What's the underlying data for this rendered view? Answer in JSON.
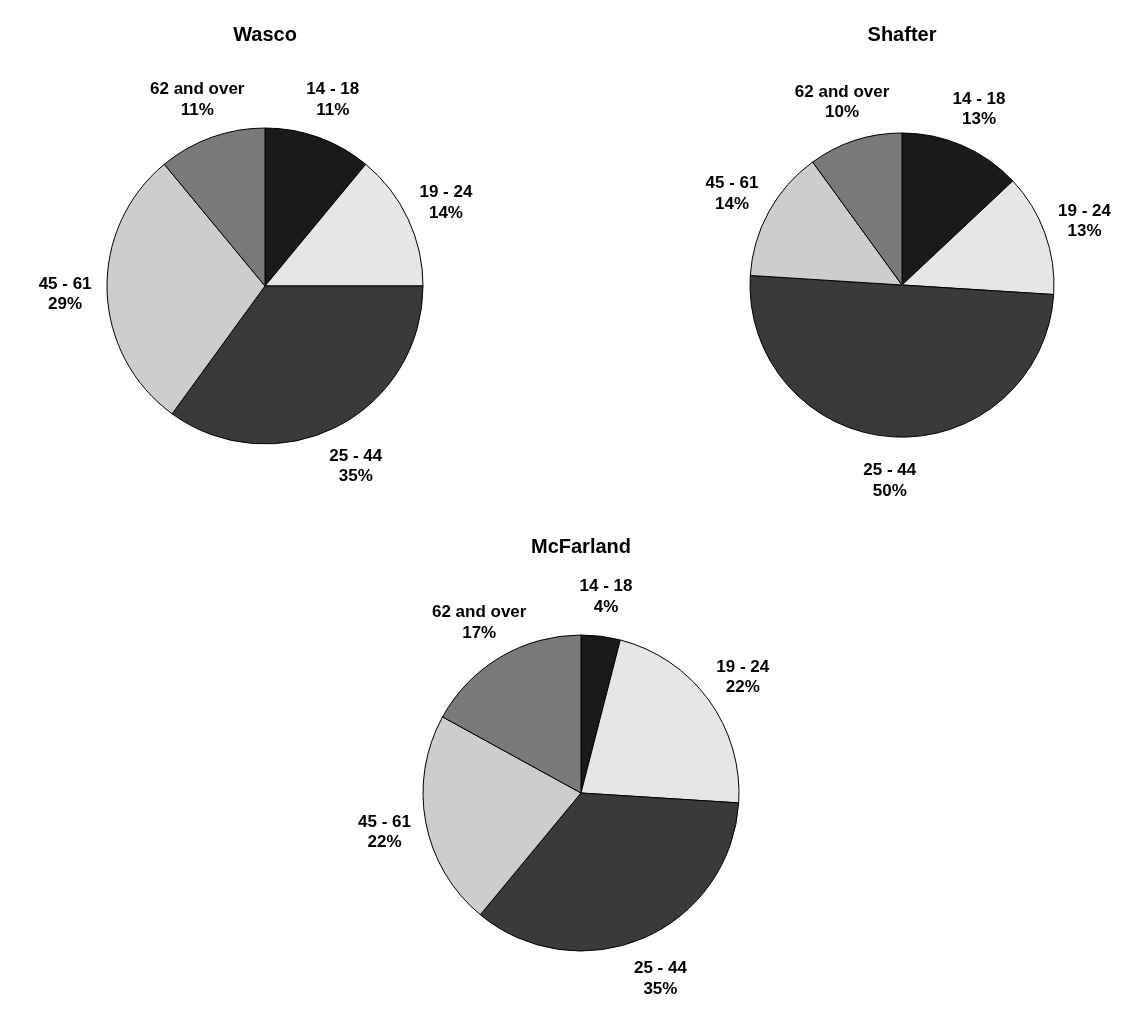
{
  "chart_data": [
    {
      "type": "pie",
      "title": "Wasco",
      "categories": [
        "14 - 18",
        "19 - 24",
        "25 - 44",
        "45 - 61",
        "62 and over"
      ],
      "values": [
        11,
        14,
        35,
        29,
        11
      ],
      "value_labels": [
        "11%",
        "14%",
        "35%",
        "29%",
        "11%"
      ],
      "colors": [
        "#1a1a1a",
        "#e6e6e6",
        "#3a3a3a",
        "#cdcdcd",
        "#7a7a7a"
      ]
    },
    {
      "type": "pie",
      "title": "Shafter",
      "categories": [
        "14 - 18",
        "19 - 24",
        "25 - 44",
        "45 - 61",
        "62 and over"
      ],
      "values": [
        13,
        13,
        50,
        14,
        10
      ],
      "value_labels": [
        "13%",
        "13%",
        "50%",
        "14%",
        "10%"
      ],
      "colors": [
        "#1a1a1a",
        "#e6e6e6",
        "#3a3a3a",
        "#cdcdcd",
        "#7a7a7a"
      ]
    },
    {
      "type": "pie",
      "title": "McFarland",
      "categories": [
        "14 - 18",
        "19 - 24",
        "25 - 44",
        "45 - 61",
        "62 and over"
      ],
      "values": [
        4,
        22,
        35,
        22,
        17
      ],
      "value_labels": [
        "4%",
        "22%",
        "35%",
        "22%",
        "17%"
      ],
      "colors": [
        "#1a1a1a",
        "#e6e6e6",
        "#3a3a3a",
        "#cdcdcd",
        "#7a7a7a"
      ]
    }
  ]
}
